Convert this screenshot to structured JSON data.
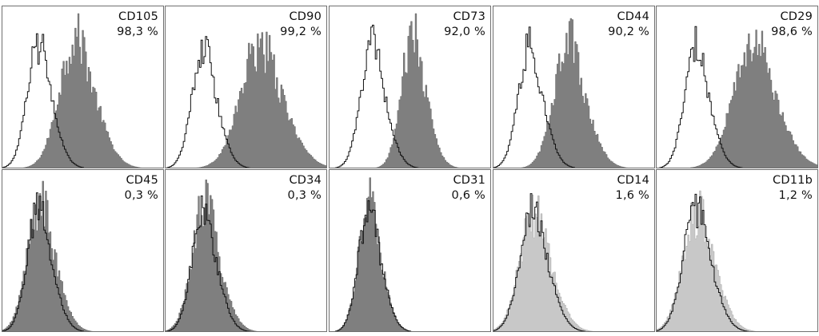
{
  "chart_data": {
    "type": "histogram-overlay-grid",
    "rows": 2,
    "cols": 5,
    "colors": {
      "positive_dark": "#7f7f7f",
      "positive_light": "#c8c8c8",
      "control_outline": "#111111",
      "frame": "#6f6f6f"
    },
    "panels": [
      {
        "marker": "CD105",
        "percent": "98,3 %",
        "fill": "dark",
        "control_center": 0.22,
        "control_width": 0.07,
        "sample_center": 0.45,
        "sample_width": 0.1,
        "sample_height": 0.84
      },
      {
        "marker": "CD90",
        "percent": "99,2 %",
        "fill": "dark",
        "control_center": 0.23,
        "control_width": 0.07,
        "sample_center": 0.58,
        "sample_width": 0.12,
        "sample_height": 0.78
      },
      {
        "marker": "CD73",
        "percent": "92,0 %",
        "fill": "dark",
        "control_center": 0.26,
        "control_width": 0.07,
        "sample_center": 0.51,
        "sample_width": 0.07,
        "sample_height": 0.84
      },
      {
        "marker": "CD44",
        "percent": "90,2 %",
        "fill": "dark",
        "control_center": 0.22,
        "control_width": 0.07,
        "sample_center": 0.46,
        "sample_width": 0.09,
        "sample_height": 0.8
      },
      {
        "marker": "CD29",
        "percent": "98,6 %",
        "fill": "dark",
        "control_center": 0.24,
        "control_width": 0.07,
        "sample_center": 0.59,
        "sample_width": 0.12,
        "sample_height": 0.8
      },
      {
        "marker": "CD45",
        "percent": "0,3 %",
        "fill": "dark",
        "control_center": 0.22,
        "control_width": 0.07,
        "sample_center": 0.23,
        "sample_width": 0.08,
        "sample_height": 0.82
      },
      {
        "marker": "CD34",
        "percent": "0,3 %",
        "fill": "dark",
        "control_center": 0.23,
        "control_width": 0.07,
        "sample_center": 0.24,
        "sample_width": 0.08,
        "sample_height": 0.8
      },
      {
        "marker": "CD31",
        "percent": "0,6 %",
        "fill": "dark",
        "control_center": 0.24,
        "control_width": 0.065,
        "sample_center": 0.24,
        "sample_width": 0.065,
        "sample_height": 0.8
      },
      {
        "marker": "CD14",
        "percent": "1,6 %",
        "fill": "light",
        "control_center": 0.24,
        "control_width": 0.08,
        "sample_center": 0.25,
        "sample_width": 0.09,
        "sample_height": 0.76
      },
      {
        "marker": "CD11b",
        "percent": "1,2 %",
        "fill": "light",
        "control_center": 0.24,
        "control_width": 0.08,
        "sample_center": 0.25,
        "sample_width": 0.09,
        "sample_height": 0.76
      }
    ]
  }
}
